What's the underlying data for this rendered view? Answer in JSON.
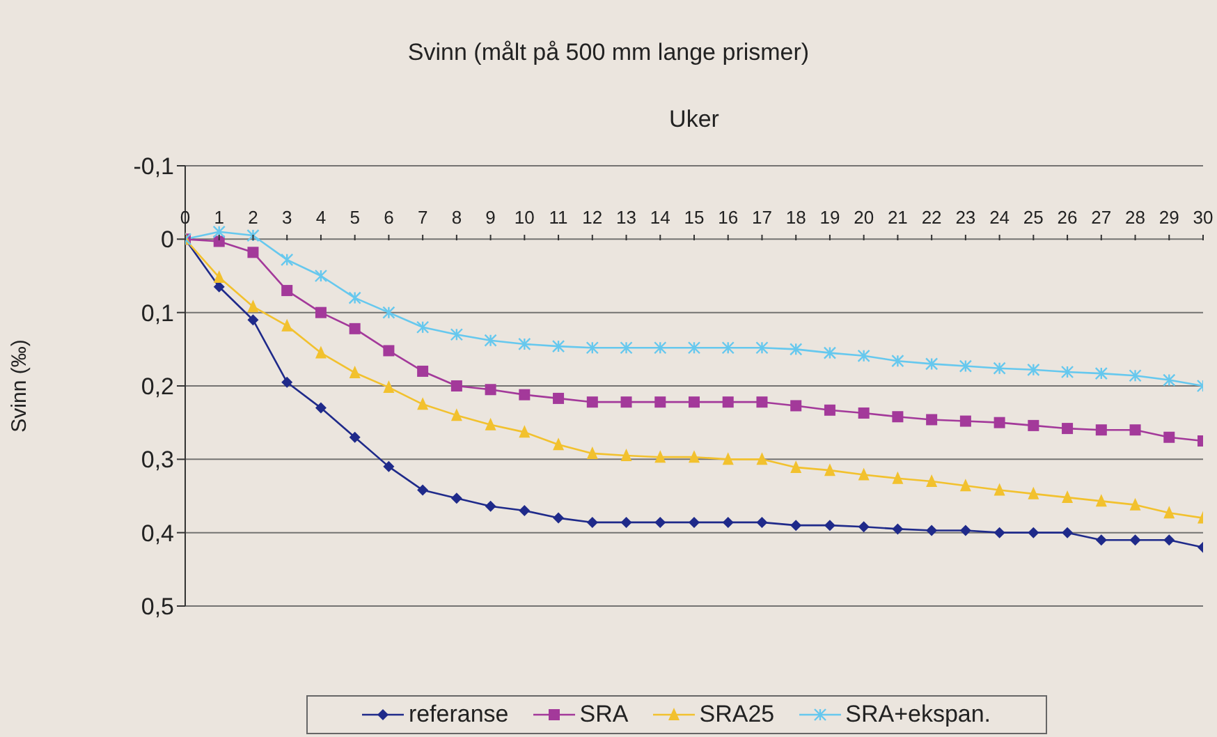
{
  "chart_data": {
    "type": "line",
    "title": "Svinn (målt på 500 mm lange prismer)",
    "xlabel": "Uker",
    "ylabel": "Svinn (‰)",
    "x": [
      0,
      1,
      2,
      3,
      4,
      5,
      6,
      7,
      8,
      9,
      10,
      11,
      12,
      13,
      14,
      15,
      16,
      17,
      18,
      19,
      20,
      21,
      22,
      23,
      24,
      25,
      26,
      27,
      28,
      29,
      30
    ],
    "xlim": [
      0,
      30
    ],
    "xticks": [
      0,
      1,
      2,
      3,
      4,
      5,
      6,
      7,
      8,
      9,
      10,
      11,
      12,
      13,
      14,
      15,
      16,
      17,
      18,
      19,
      20,
      21,
      22,
      23,
      24,
      25,
      26,
      27,
      28,
      29,
      30
    ],
    "ylim": [
      0.5,
      -0.1
    ],
    "yticks": [
      {
        "value": -0.1,
        "label": "-0,1"
      },
      0,
      {
        "value": 0.1,
        "label": "0,1"
      },
      {
        "value": 0.2,
        "label": "0,2"
      },
      {
        "value": 0.3,
        "label": "0,3"
      },
      {
        "value": 0.4,
        "label": "0,4"
      },
      {
        "value": 0.5,
        "label": "0,5"
      }
    ],
    "grid": "y",
    "legend": "bottom",
    "line_style": "solid",
    "series": [
      {
        "name": "referanse",
        "color": "#1f2a8a",
        "marker": "diamond",
        "values": [
          0,
          0.065,
          0.11,
          0.195,
          0.23,
          0.27,
          0.31,
          0.342,
          0.353,
          0.364,
          0.37,
          0.38,
          0.386,
          0.386,
          0.386,
          0.386,
          0.386,
          0.386,
          0.39,
          0.39,
          0.392,
          0.395,
          0.397,
          0.397,
          0.4,
          0.4,
          0.4,
          0.41,
          0.41,
          0.41,
          0.42
        ]
      },
      {
        "name": "SRA",
        "color": "#a3399a",
        "marker": "square",
        "values": [
          0,
          0.003,
          0.018,
          0.07,
          0.1,
          0.122,
          0.152,
          0.18,
          0.2,
          0.205,
          0.212,
          0.217,
          0.222,
          0.222,
          0.222,
          0.222,
          0.222,
          0.222,
          0.227,
          0.233,
          0.237,
          0.242,
          0.246,
          0.248,
          0.25,
          0.254,
          0.258,
          0.26,
          0.26,
          0.27,
          0.275
        ]
      },
      {
        "name": "SRA25",
        "color": "#f2c12e",
        "marker": "triangle",
        "values": [
          0,
          0.052,
          0.092,
          0.118,
          0.155,
          0.182,
          0.202,
          0.225,
          0.24,
          0.253,
          0.263,
          0.28,
          0.292,
          0.295,
          0.297,
          0.297,
          0.3,
          0.3,
          0.311,
          0.315,
          0.321,
          0.326,
          0.33,
          0.336,
          0.342,
          0.347,
          0.352,
          0.357,
          0.362,
          0.373,
          0.38
        ]
      },
      {
        "name": "SRA+ekspan.",
        "color": "#66c8ee",
        "marker": "cross",
        "values": [
          0,
          -0.01,
          -0.005,
          0.028,
          0.05,
          0.08,
          0.1,
          0.12,
          0.13,
          0.138,
          0.143,
          0.146,
          0.148,
          0.148,
          0.148,
          0.148,
          0.148,
          0.148,
          0.15,
          0.155,
          0.159,
          0.166,
          0.17,
          0.173,
          0.176,
          0.178,
          0.181,
          0.183,
          0.186,
          0.192,
          0.2
        ]
      }
    ]
  }
}
